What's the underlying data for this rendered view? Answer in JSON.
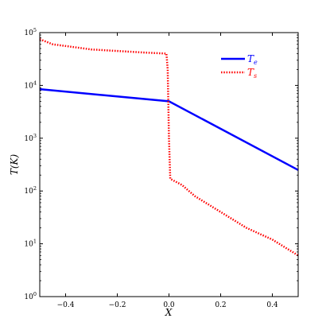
{
  "chart_data": {
    "type": "line",
    "xlabel": "X",
    "ylabel": "T(K)",
    "xlim": [
      -0.5,
      0.5
    ],
    "ylim": [
      1,
      100000
    ],
    "yscale": "log",
    "grid": false,
    "legend_position": "top-right",
    "x_ticks": [
      "−0.4",
      "−0.2",
      "0.0",
      "0.2",
      "0.4"
    ],
    "x_tick_values": [
      -0.4,
      -0.2,
      0.0,
      0.2,
      0.4
    ],
    "y_tick_values": [
      1,
      10,
      100,
      1000,
      10000,
      100000
    ],
    "y_ticks": [
      {
        "base": "10",
        "exp": "0"
      },
      {
        "base": "10",
        "exp": "1"
      },
      {
        "base": "10",
        "exp": "2"
      },
      {
        "base": "10",
        "exp": "3"
      },
      {
        "base": "10",
        "exp": "4"
      },
      {
        "base": "10",
        "exp": "5"
      }
    ],
    "series": [
      {
        "name_main": "T",
        "name_sub": "e",
        "color": "#0000ff",
        "style": "solid",
        "x": [
          -0.5,
          0.0,
          0.5
        ],
        "y": [
          8500,
          5000,
          250
        ]
      },
      {
        "name_main": "T",
        "name_sub": "s",
        "color": "#ff0000",
        "style": "dotted",
        "x": [
          -0.5,
          -0.45,
          -0.3,
          -0.1,
          -0.01,
          -0.005,
          0.0,
          0.005,
          0.05,
          0.1,
          0.2,
          0.3,
          0.4,
          0.5
        ],
        "y": [
          75000,
          60000,
          48000,
          42000,
          40000,
          20000,
          1000,
          170,
          130,
          80,
          40,
          20,
          12,
          6
        ]
      }
    ]
  }
}
